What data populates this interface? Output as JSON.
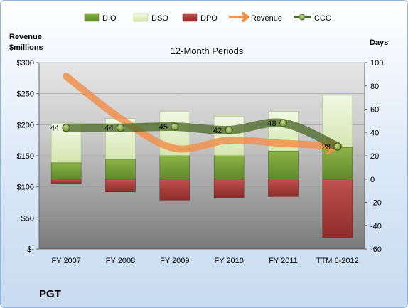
{
  "company_label": "PGT",
  "chart_data": {
    "type": "bar",
    "title": "12-Month Periods",
    "ylabel_left": "Revenue $millions",
    "ylabel_left_lines": [
      "Revenue",
      "$millions"
    ],
    "ylabel_right": "Days",
    "categories": [
      "FY 2007",
      "FY 2008",
      "FY 2009",
      "FY 2010",
      "FY 2011",
      "TTM 6-2012"
    ],
    "left_axis": {
      "ylim": [
        0,
        300
      ],
      "ticks": [
        0,
        50,
        100,
        150,
        200,
        250,
        300
      ],
      "tick_labels": [
        "$-",
        "$50",
        "$100",
        "$150",
        "$200",
        "$250",
        "$300"
      ]
    },
    "right_axis": {
      "ylim": [
        -60,
        100
      ],
      "ticks": [
        -60,
        -40,
        -20,
        0,
        20,
        40,
        60,
        80,
        100
      ],
      "tick_labels": [
        "-60",
        "-40",
        "-20",
        "0",
        "20",
        "40",
        "60",
        "80",
        "100"
      ]
    },
    "legend_position": "top",
    "series": [
      {
        "name": "DIO",
        "axis": "right",
        "kind": "stacked-bar",
        "color": "#6f9a33",
        "values": [
          14,
          17,
          20,
          20,
          24,
          27
        ]
      },
      {
        "name": "DSO",
        "axis": "right",
        "kind": "stacked-bar",
        "color": "#e0edc4",
        "values": [
          34,
          35,
          38,
          34,
          34,
          45
        ]
      },
      {
        "name": "DPO",
        "axis": "right",
        "kind": "negative-bar",
        "color": "#a93a3a",
        "values": [
          -4,
          -11,
          -18,
          -16,
          -15,
          -50
        ]
      },
      {
        "name": "Revenue",
        "axis": "left",
        "kind": "line",
        "color": "#f0924d",
        "values": [
          278,
          210,
          162,
          175,
          170,
          166
        ]
      },
      {
        "name": "CCC",
        "axis": "right",
        "kind": "line-markers",
        "color": "#4e6a2a",
        "values": [
          44,
          44,
          45,
          42,
          48,
          28
        ],
        "data_labels": [
          "44",
          "44",
          "45",
          "42",
          "48",
          "28"
        ]
      }
    ]
  }
}
